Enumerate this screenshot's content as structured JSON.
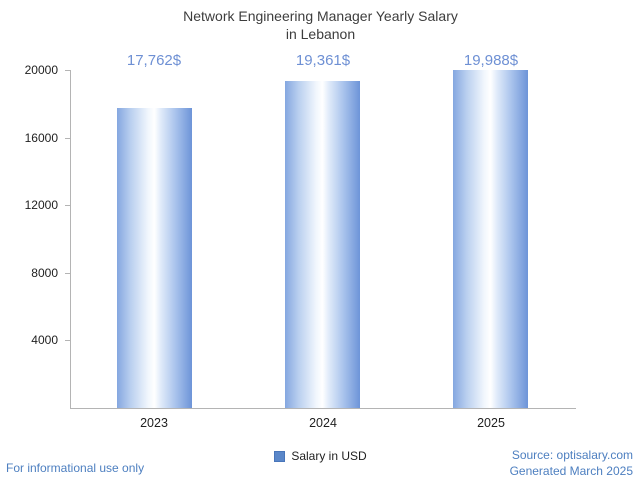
{
  "header": {
    "title_line1": "Network Engineering Manager Yearly Salary",
    "title_line2": "in Lebanon"
  },
  "chart_data": {
    "type": "bar",
    "title": "Network Engineering Manager Yearly Salary in Lebanon",
    "categories": [
      "2023",
      "2024",
      "2025"
    ],
    "values": [
      17762,
      19361,
      19988
    ],
    "value_labels": [
      "17,762$",
      "19,361$",
      "19,988$"
    ],
    "series_name": "Salary in USD",
    "xlabel": "",
    "ylabel": "",
    "ylim": [
      0,
      20000
    ],
    "yticks": [
      4000,
      8000,
      12000,
      16000,
      20000
    ],
    "grid": false,
    "legend_position": "bottom"
  },
  "legend": {
    "label": "Salary in USD"
  },
  "footer": {
    "left": "For informational use only",
    "source": "Source: optisalary.com",
    "generated": "Generated March 2025"
  },
  "colors": {
    "title_text": "#3d3d3d",
    "value_label": "#6e90d4",
    "bar_edge_blue": "#6d94d8",
    "bar_highlight": "#ffffff",
    "legend_swatch": "#5a87c9",
    "axis_line": "#b4b4b4",
    "tick_text": "#1f1f1f",
    "footer_blue": "#4d7fc0"
  }
}
